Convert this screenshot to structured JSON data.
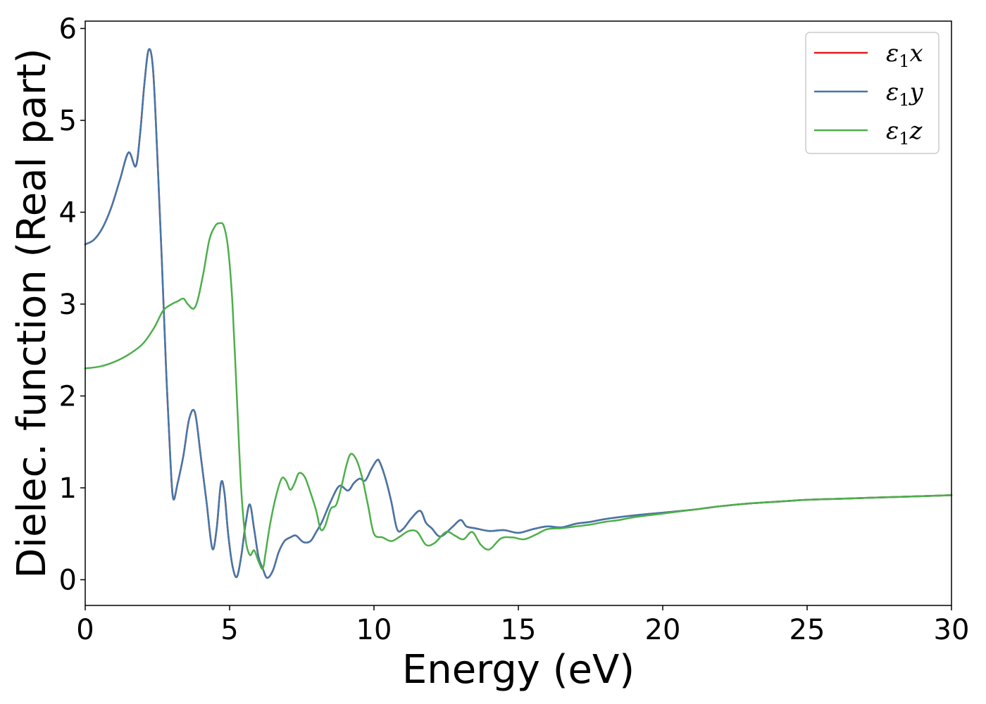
{
  "chart_data": {
    "type": "line",
    "title": "",
    "xlabel": "Energy (eV)",
    "ylabel": "Dielec. function (Real part)",
    "xlim": [
      0,
      30
    ],
    "ylim": [
      -0.28,
      6.08
    ],
    "x_ticks": [
      0,
      5,
      10,
      15,
      20,
      25,
      30
    ],
    "y_ticks": [
      0,
      1,
      2,
      3,
      4,
      5,
      6
    ],
    "grid": false,
    "legend_position": "top-right",
    "series": [
      {
        "name": "ε1x",
        "legend_base": "ε",
        "legend_sub": "1",
        "legend_suffix": "x",
        "color": "#e41a1c",
        "x": [
          0,
          0.3,
          0.6,
          0.9,
          1.2,
          1.5,
          1.75,
          1.9,
          2.05,
          2.2,
          2.35,
          2.5,
          2.65,
          2.8,
          2.95,
          3.05,
          3.2,
          3.4,
          3.6,
          3.8,
          4.0,
          4.2,
          4.4,
          4.55,
          4.7,
          4.82,
          4.95,
          5.1,
          5.25,
          5.4,
          5.55,
          5.7,
          5.85,
          6.0,
          6.15,
          6.3,
          6.5,
          6.7,
          6.9,
          7.1,
          7.3,
          7.55,
          7.8,
          8.0,
          8.2,
          8.5,
          8.8,
          9.1,
          9.3,
          9.5,
          9.7,
          9.9,
          10.1,
          10.2,
          10.4,
          10.6,
          10.8,
          11.0,
          11.3,
          11.6,
          11.8,
          12.0,
          12.3,
          12.7,
          13.0,
          13.2,
          13.5,
          14.0,
          14.5,
          15.0,
          15.5,
          16.0,
          16.5,
          17.0,
          17.5,
          18.0,
          19.0,
          20.0,
          21.0,
          22.0,
          23.0,
          24.0,
          25.0,
          26.0,
          27.0,
          28.0,
          29.0,
          30.0
        ],
        "y": [
          3.65,
          3.7,
          3.83,
          4.05,
          4.35,
          4.65,
          4.5,
          4.85,
          5.4,
          5.77,
          5.55,
          4.6,
          3.5,
          2.3,
          1.3,
          0.88,
          1.05,
          1.35,
          1.75,
          1.82,
          1.35,
          0.85,
          0.34,
          0.55,
          1.05,
          0.95,
          0.5,
          0.15,
          0.03,
          0.25,
          0.6,
          0.82,
          0.55,
          0.25,
          0.12,
          0.02,
          0.1,
          0.3,
          0.42,
          0.46,
          0.48,
          0.41,
          0.42,
          0.52,
          0.63,
          0.85,
          1.02,
          0.97,
          1.05,
          1.1,
          1.08,
          1.2,
          1.3,
          1.28,
          1.1,
          0.85,
          0.55,
          0.55,
          0.67,
          0.75,
          0.62,
          0.56,
          0.47,
          0.57,
          0.65,
          0.58,
          0.56,
          0.53,
          0.54,
          0.51,
          0.55,
          0.58,
          0.57,
          0.61,
          0.63,
          0.66,
          0.7,
          0.73,
          0.76,
          0.8,
          0.83,
          0.85,
          0.87,
          0.88,
          0.89,
          0.9,
          0.91,
          0.92
        ]
      },
      {
        "name": "ε1y",
        "legend_base": "ε",
        "legend_sub": "1",
        "legend_suffix": "y",
        "color": "#4477aa",
        "x": [
          0,
          0.3,
          0.6,
          0.9,
          1.2,
          1.5,
          1.75,
          1.9,
          2.05,
          2.2,
          2.35,
          2.5,
          2.65,
          2.8,
          2.95,
          3.05,
          3.2,
          3.4,
          3.6,
          3.8,
          4.0,
          4.2,
          4.4,
          4.55,
          4.7,
          4.82,
          4.95,
          5.1,
          5.25,
          5.4,
          5.55,
          5.7,
          5.85,
          6.0,
          6.15,
          6.3,
          6.5,
          6.7,
          6.9,
          7.1,
          7.3,
          7.55,
          7.8,
          8.0,
          8.2,
          8.5,
          8.8,
          9.1,
          9.3,
          9.5,
          9.7,
          9.9,
          10.1,
          10.2,
          10.4,
          10.6,
          10.8,
          11.0,
          11.3,
          11.6,
          11.8,
          12.0,
          12.3,
          12.7,
          13.0,
          13.2,
          13.5,
          14.0,
          14.5,
          15.0,
          15.5,
          16.0,
          16.5,
          17.0,
          17.5,
          18.0,
          19.0,
          20.0,
          21.0,
          22.0,
          23.0,
          24.0,
          25.0,
          26.0,
          27.0,
          28.0,
          29.0,
          30.0
        ],
        "y": [
          3.65,
          3.7,
          3.83,
          4.05,
          4.35,
          4.65,
          4.5,
          4.85,
          5.4,
          5.77,
          5.55,
          4.6,
          3.5,
          2.3,
          1.3,
          0.88,
          1.05,
          1.35,
          1.75,
          1.82,
          1.35,
          0.85,
          0.34,
          0.55,
          1.05,
          0.95,
          0.5,
          0.15,
          0.03,
          0.25,
          0.6,
          0.82,
          0.55,
          0.25,
          0.12,
          0.02,
          0.1,
          0.3,
          0.42,
          0.46,
          0.48,
          0.41,
          0.42,
          0.52,
          0.63,
          0.85,
          1.02,
          0.97,
          1.05,
          1.1,
          1.08,
          1.2,
          1.3,
          1.28,
          1.1,
          0.85,
          0.55,
          0.55,
          0.67,
          0.75,
          0.62,
          0.56,
          0.47,
          0.57,
          0.65,
          0.58,
          0.56,
          0.53,
          0.54,
          0.51,
          0.55,
          0.58,
          0.57,
          0.61,
          0.63,
          0.66,
          0.7,
          0.73,
          0.76,
          0.8,
          0.83,
          0.85,
          0.87,
          0.88,
          0.89,
          0.9,
          0.91,
          0.92
        ]
      },
      {
        "name": "ε1z",
        "legend_base": "ε",
        "legend_sub": "1",
        "legend_suffix": "z",
        "color": "#4daf4a",
        "x": [
          0,
          0.5,
          1.0,
          1.5,
          2.0,
          2.4,
          2.7,
          3.0,
          3.2,
          3.4,
          3.55,
          3.75,
          3.9,
          4.1,
          4.3,
          4.5,
          4.65,
          4.8,
          4.95,
          5.1,
          5.25,
          5.4,
          5.55,
          5.7,
          5.85,
          6.0,
          6.15,
          6.25,
          6.4,
          6.6,
          6.8,
          6.95,
          7.1,
          7.25,
          7.4,
          7.6,
          7.8,
          8.0,
          8.15,
          8.3,
          8.5,
          8.7,
          8.9,
          9.05,
          9.2,
          9.4,
          9.6,
          9.8,
          10.0,
          10.3,
          10.6,
          10.9,
          11.2,
          11.5,
          11.8,
          12.1,
          12.5,
          12.8,
          13.1,
          13.4,
          13.7,
          14.0,
          14.4,
          14.8,
          15.2,
          15.6,
          16.0,
          16.5,
          17.0,
          17.5,
          18.0,
          18.5,
          19.0,
          20.0,
          21.0,
          22.0,
          23.0,
          24.0,
          25.0,
          26.0,
          27.0,
          28.0,
          29.0,
          30.0
        ],
        "y": [
          2.3,
          2.32,
          2.37,
          2.45,
          2.57,
          2.75,
          2.93,
          3.0,
          3.03,
          3.06,
          3.0,
          2.95,
          3.05,
          3.35,
          3.7,
          3.85,
          3.88,
          3.85,
          3.6,
          3.0,
          2.0,
          1.0,
          0.45,
          0.27,
          0.32,
          0.2,
          0.12,
          0.3,
          0.6,
          0.9,
          1.1,
          1.08,
          0.98,
          1.05,
          1.16,
          1.12,
          0.95,
          0.75,
          0.55,
          0.58,
          0.77,
          0.82,
          1.05,
          1.25,
          1.37,
          1.3,
          1.1,
          0.8,
          0.5,
          0.46,
          0.42,
          0.47,
          0.53,
          0.52,
          0.38,
          0.4,
          0.52,
          0.48,
          0.44,
          0.52,
          0.38,
          0.33,
          0.45,
          0.46,
          0.44,
          0.49,
          0.55,
          0.56,
          0.58,
          0.6,
          0.63,
          0.65,
          0.68,
          0.72,
          0.76,
          0.8,
          0.83,
          0.85,
          0.87,
          0.88,
          0.89,
          0.9,
          0.91,
          0.92
        ]
      }
    ]
  }
}
